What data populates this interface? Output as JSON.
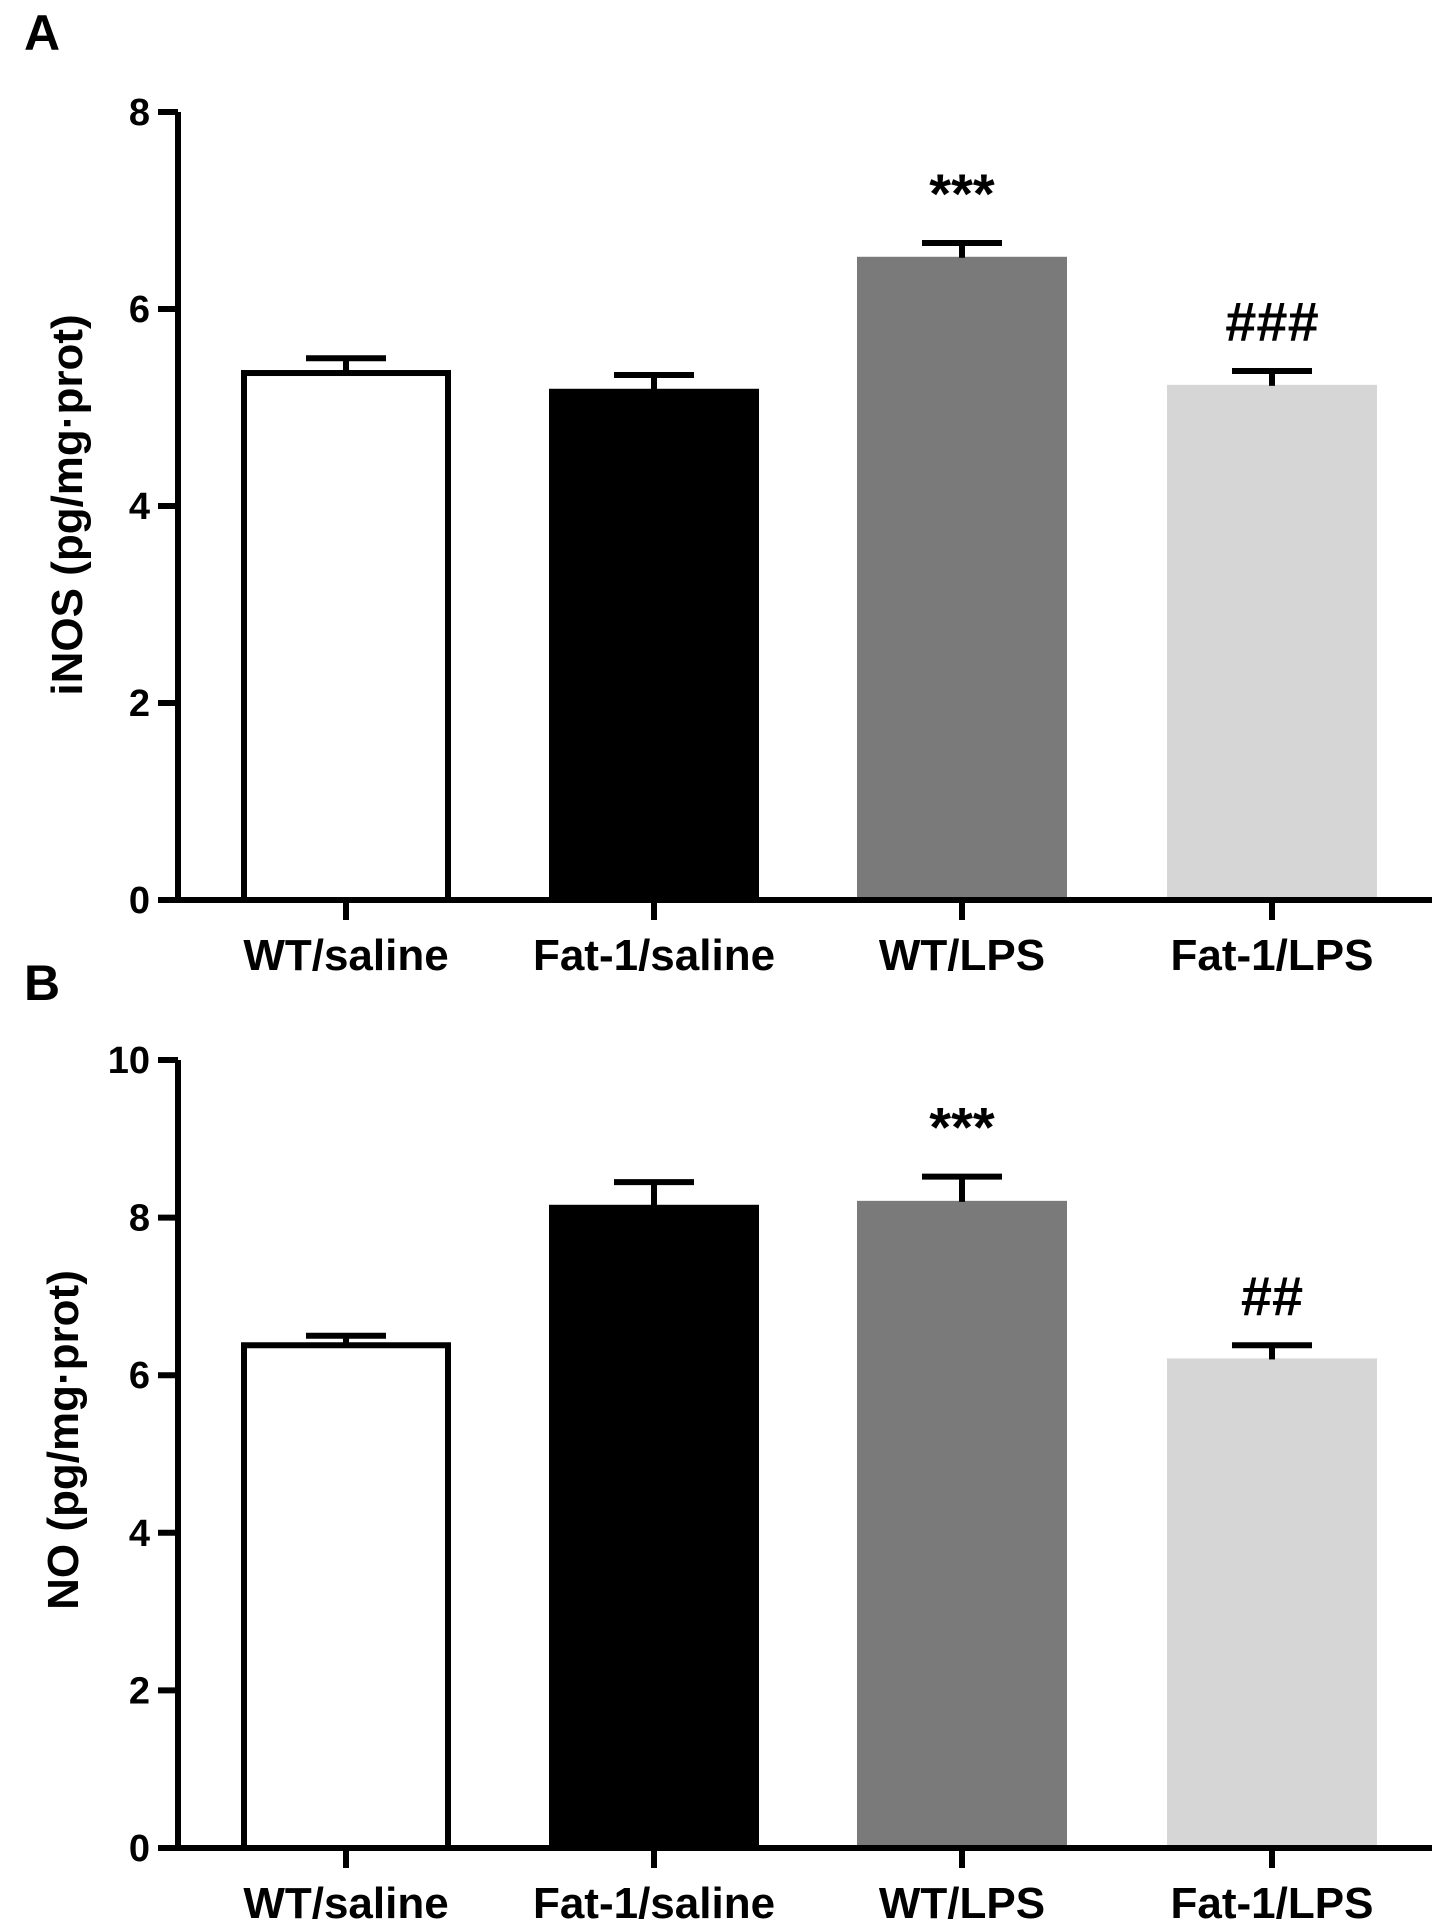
{
  "chart_data": [
    {
      "type": "bar",
      "panel": "A",
      "title": "",
      "xlabel": "",
      "ylabel": "iNOS (pg/mg·prot)",
      "ylim": [
        0,
        8
      ],
      "yticks": [
        0,
        2,
        4,
        6,
        8
      ],
      "grid": false,
      "categories": [
        "WT/saline",
        "Fat-1/saline",
        "WT/LPS",
        "Fat-1/LPS"
      ],
      "values": [
        5.35,
        5.18,
        6.52,
        5.22
      ],
      "errors": [
        0.15,
        0.15,
        0.15,
        0.15
      ],
      "colors": [
        "#ffffff",
        "#000000",
        "#7a7a7a",
        "#d6d6d6"
      ],
      "annotations": [
        "",
        "",
        "***",
        "###"
      ]
    },
    {
      "type": "bar",
      "panel": "B",
      "title": "",
      "xlabel": "",
      "ylabel": "NO (pg/mg·prot)",
      "ylim": [
        0,
        10
      ],
      "yticks": [
        0,
        2,
        4,
        6,
        8,
        10
      ],
      "grid": false,
      "categories": [
        "WT/saline",
        "Fat-1/saline",
        "WT/LPS",
        "Fat-1/LPS"
      ],
      "values": [
        6.38,
        8.15,
        8.2,
        6.2
      ],
      "errors": [
        0.12,
        0.3,
        0.32,
        0.18
      ],
      "colors": [
        "#ffffff",
        "#000000",
        "#7a7a7a",
        "#d6d6d6"
      ],
      "annotations": [
        "",
        "",
        "***",
        "##"
      ]
    }
  ]
}
